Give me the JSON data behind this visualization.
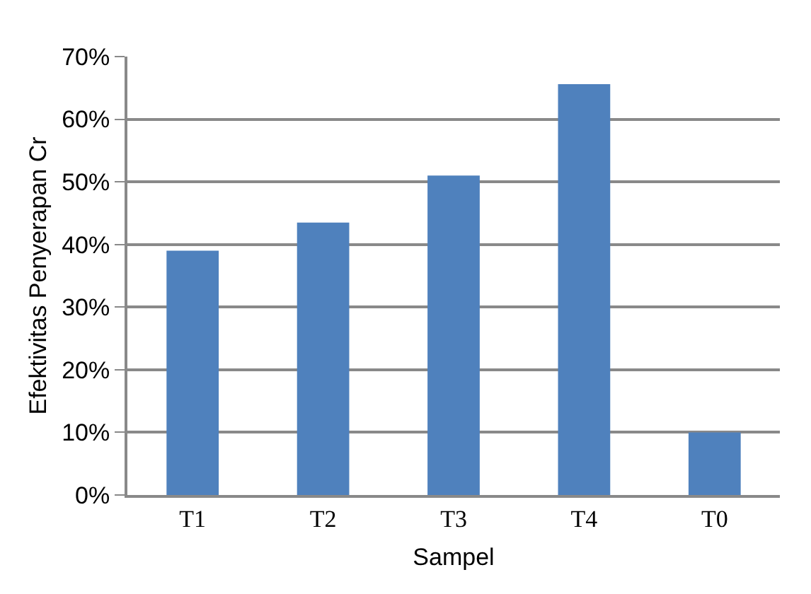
{
  "chart_data": {
    "type": "bar",
    "xlabel": "Sampel",
    "ylabel": "Efektivitas Penyerapan Cr",
    "categories": [
      "T1",
      "T2",
      "T3",
      "T4",
      "T0"
    ],
    "values": [
      39,
      43.5,
      51,
      65.6,
      10
    ],
    "color": "#4f81bd",
    "ylim": [
      0,
      70
    ],
    "yticks": [
      {
        "value": 0,
        "label": "0%"
      },
      {
        "value": 10,
        "label": "10%"
      },
      {
        "value": 20,
        "label": "20%"
      },
      {
        "value": 30,
        "label": "30%"
      },
      {
        "value": 40,
        "label": "40%"
      },
      {
        "value": 50,
        "label": "50%"
      },
      {
        "value": 60,
        "label": "60%"
      },
      {
        "value": 70,
        "label": "70%"
      }
    ],
    "grid": "y",
    "legend": false
  }
}
